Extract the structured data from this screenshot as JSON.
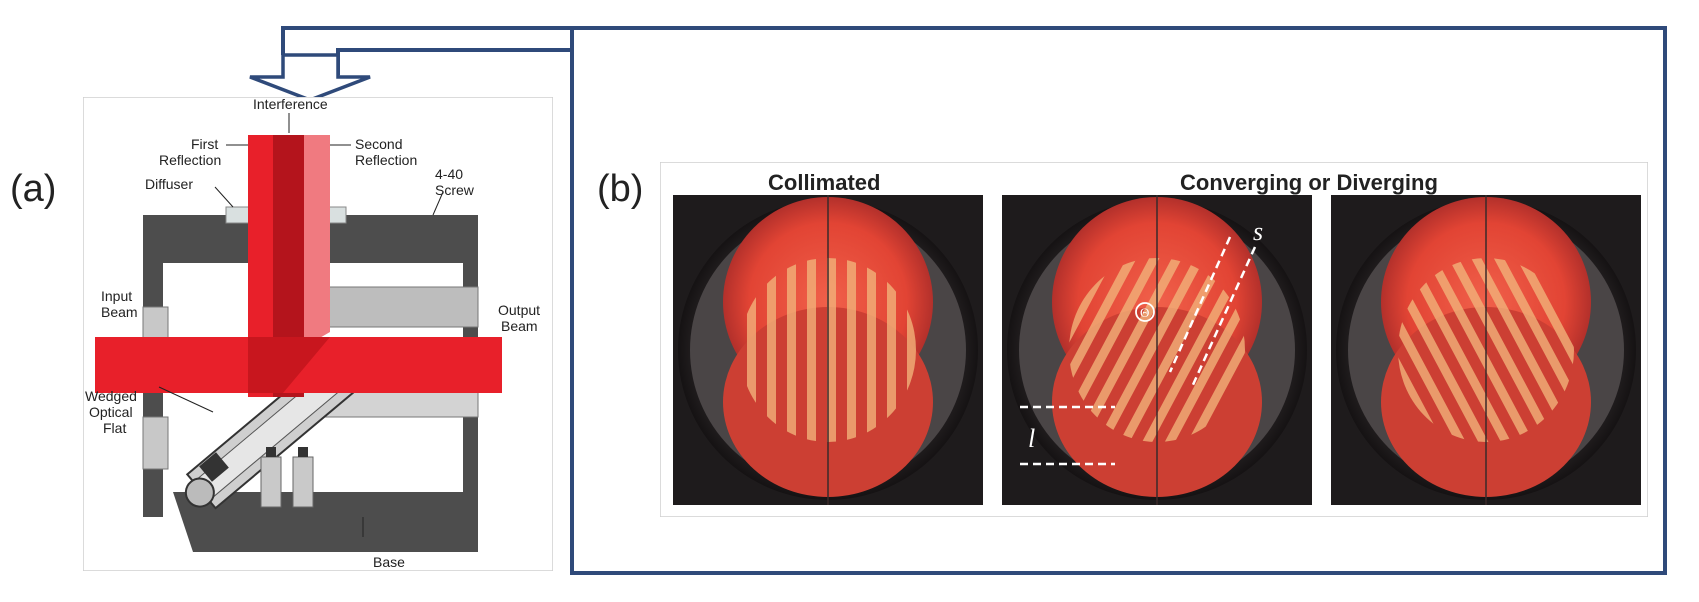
{
  "panel_a": {
    "label": "(a)",
    "labels": {
      "interference": "Interference",
      "first_reflection_1": "First",
      "first_reflection_2": "Reflection",
      "second_reflection_1": "Second",
      "second_reflection_2": "Reflection",
      "diffuser": "Diffuser",
      "screw_1": "4-40",
      "screw_2": "Screw",
      "input_beam_1": "Input",
      "input_beam_2": "Beam",
      "output_beam_1": "Output",
      "output_beam_2": "Beam",
      "wedged_1": "Wedged",
      "wedged_2": "Optical",
      "wedged_3": "Flat",
      "base": "Base"
    }
  },
  "panel_b": {
    "label": "(b)",
    "title_collimated": "Collimated",
    "title_converging": "Converging or Diverging",
    "annotations": {
      "s": "s",
      "theta": "Θ",
      "l": "l"
    }
  },
  "colors": {
    "connector": "#2f4a7a",
    "beam_red": "#e8202a",
    "beam_dark": "#b4141c",
    "beam_pink": "#f07a80",
    "housing": "#555555",
    "glass": "#d8d8d8",
    "spot": "#e8503f",
    "photo_bg": "#1e1b1c"
  }
}
